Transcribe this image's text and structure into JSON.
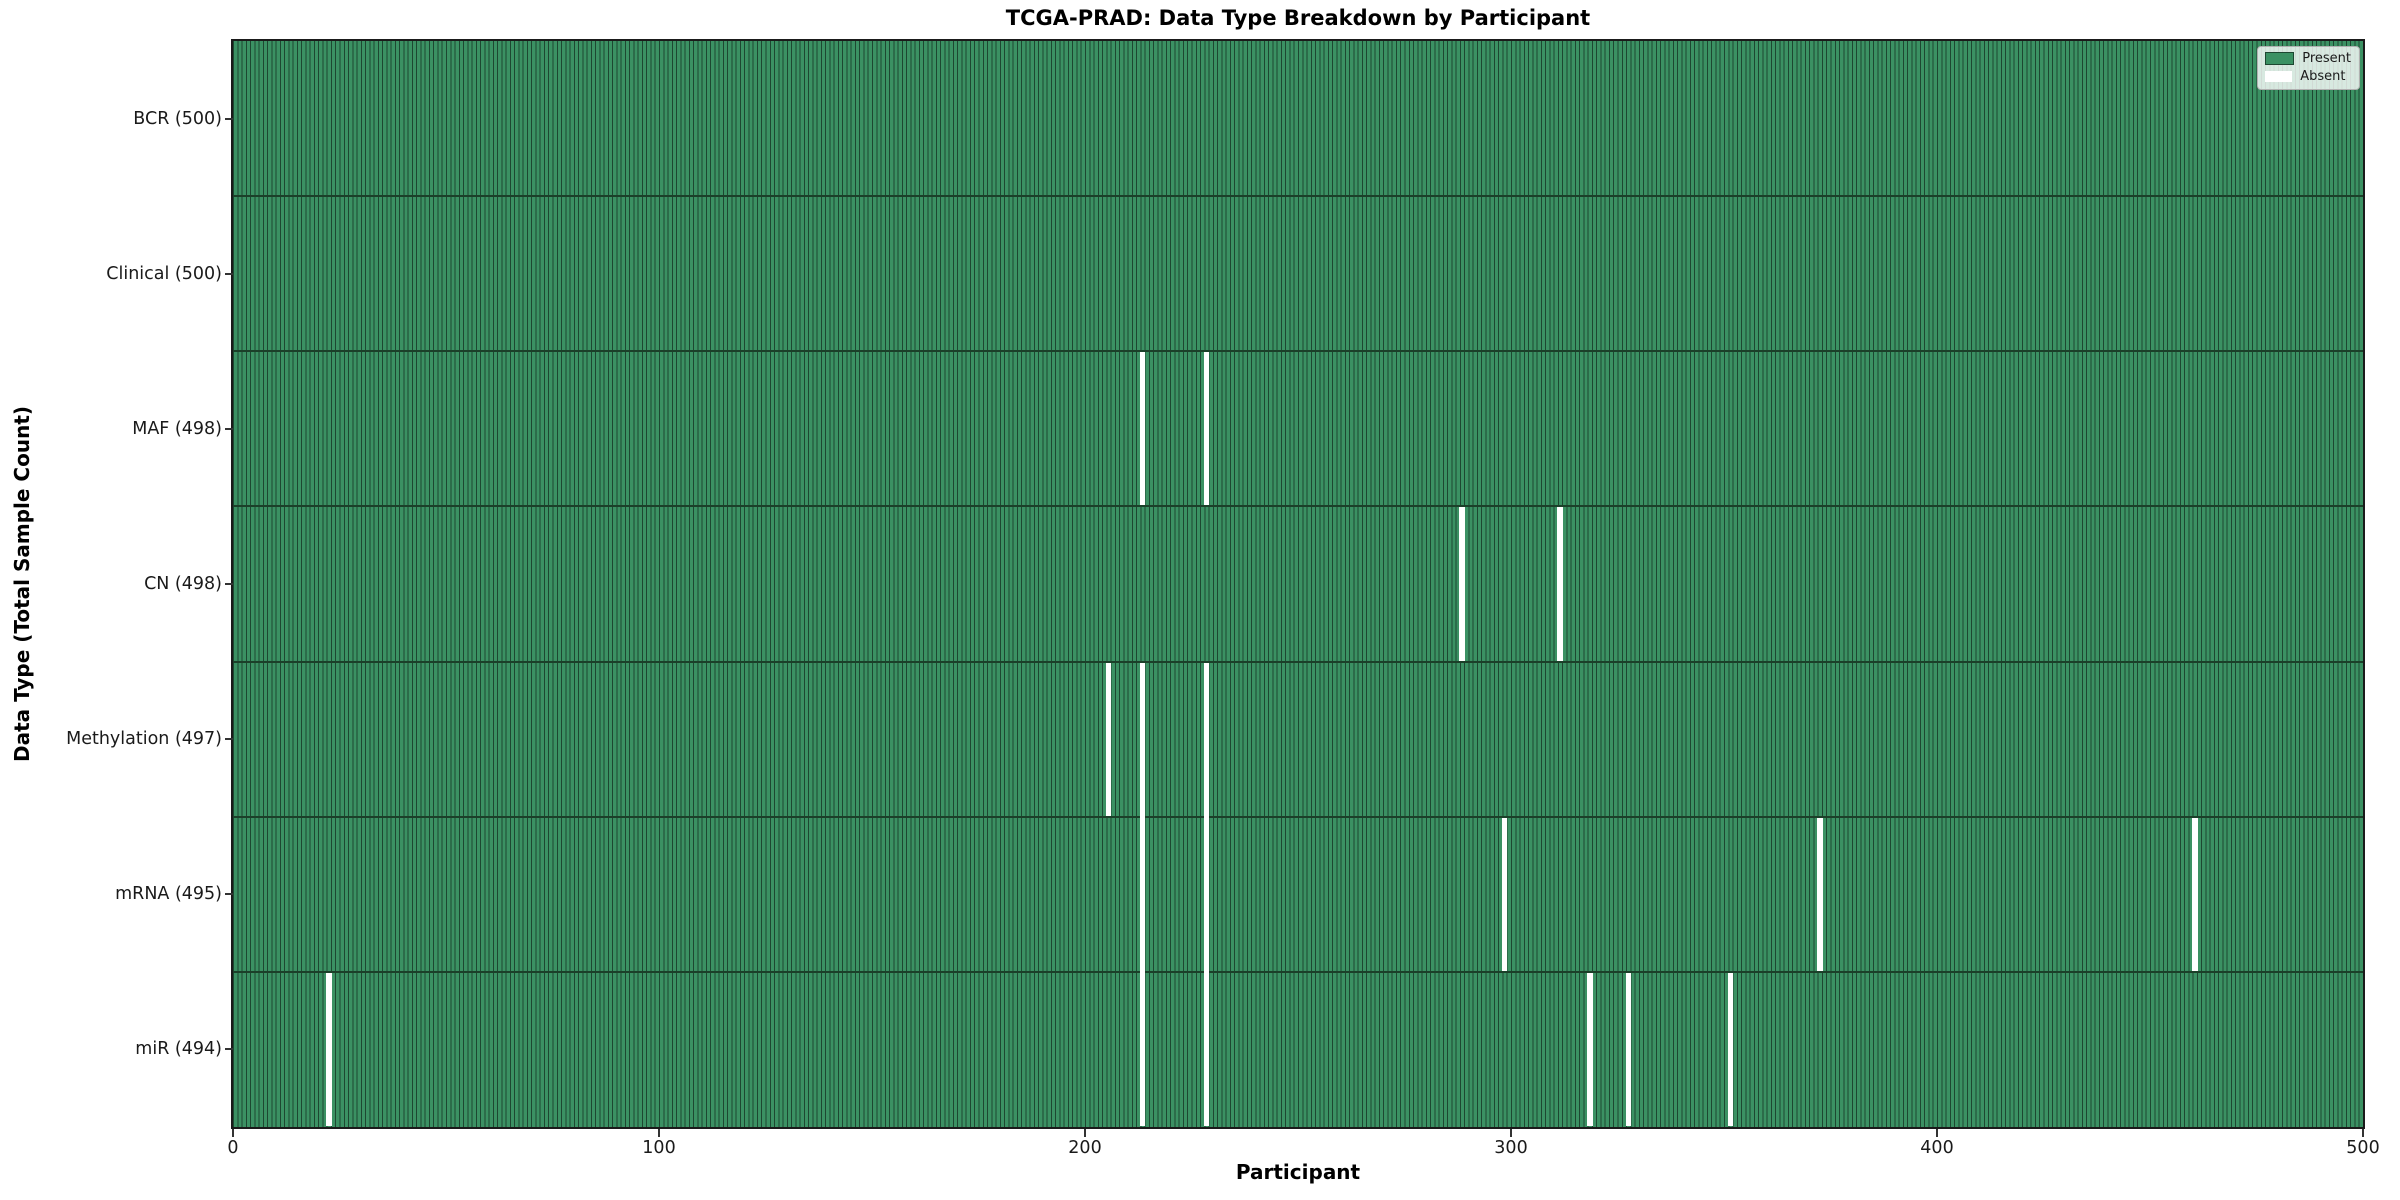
{
  "title": "TCGA-PRAD: Data Type Breakdown by Participant",
  "chart_data": {
    "type": "heatmap",
    "title": "TCGA-PRAD: Data Type Breakdown by Participant",
    "xlabel": "Participant",
    "ylabel": "Data Type (Total Sample Count)",
    "x_range": [
      0,
      500
    ],
    "x_ticks": [
      0,
      100,
      200,
      300,
      400,
      500
    ],
    "n_participants": 500,
    "grid": false,
    "legend_position": "upper right",
    "legend": [
      {
        "label": "Present",
        "color": "#3b9163"
      },
      {
        "label": "Absent",
        "color": "#ffffff"
      }
    ],
    "rows": [
      {
        "name": "BCR",
        "label": "BCR (500)",
        "total": 500,
        "absent_participants": []
      },
      {
        "name": "Clinical",
        "label": "Clinical (500)",
        "total": 500,
        "absent_participants": []
      },
      {
        "name": "MAF",
        "label": "MAF (498)",
        "total": 498,
        "absent_participants": [
          213,
          228
        ]
      },
      {
        "name": "CN",
        "label": "CN (498)",
        "total": 498,
        "absent_participants": [
          288,
          311
        ]
      },
      {
        "name": "Methylation",
        "label": "Methylation (497)",
        "total": 497,
        "absent_participants": [
          205,
          213,
          228
        ]
      },
      {
        "name": "mRNA",
        "label": "mRNA (495)",
        "total": 495,
        "absent_participants": [
          213,
          228,
          298,
          372,
          460
        ]
      },
      {
        "name": "miR",
        "label": "miR (494)",
        "total": 494,
        "absent_participants": [
          22,
          213,
          228,
          318,
          327,
          351
        ]
      }
    ],
    "colors": {
      "present_face": "#3b9163",
      "bar_edge": "#1d4731",
      "row_boundary": "#1b4029",
      "absent": "#ffffff",
      "spine": "#1a1a1a",
      "background": "#ffffff"
    }
  }
}
